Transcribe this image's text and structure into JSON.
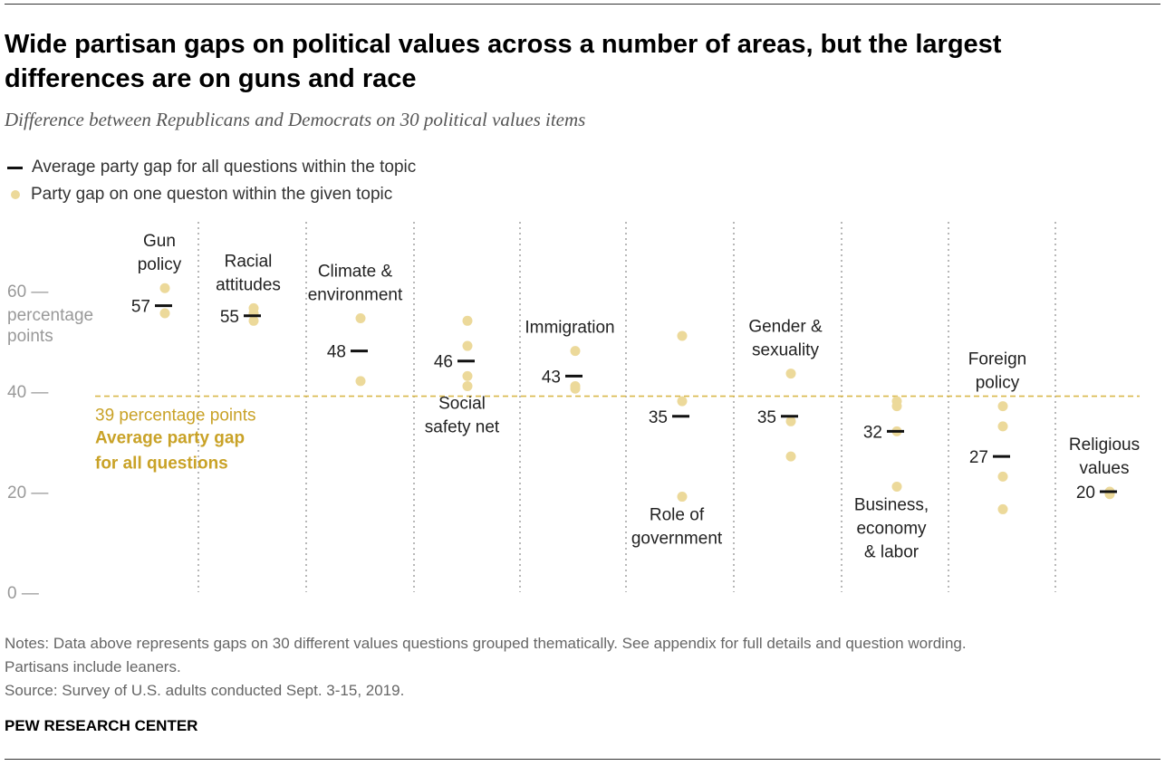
{
  "title": "Wide partisan gaps on political values across a number of areas, but the largest differences are on guns and race",
  "subtitle": "Difference between Republicans and Democrats on 30 political values items",
  "legend": {
    "average": "Average party gap for all questions within the topic",
    "single": "Party gap on one queston within the given topic"
  },
  "colors": {
    "dot": "#ecd99a",
    "reference": "#d9b84a",
    "reference_text": "#c9a227",
    "average_mark": "#111111",
    "divider": "#888888"
  },
  "chart_data": {
    "type": "scatter",
    "title": "Wide partisan gaps on political values across a number of areas, but the largest differences are on guns and race",
    "ylabel": "percentage points",
    "ylim": [
      0,
      70
    ],
    "yticks": [
      {
        "value": 60,
        "label": "60 —"
      },
      {
        "value": 40,
        "label": "40 —"
      },
      {
        "value": 20,
        "label": "20 —"
      },
      {
        "value": 0,
        "label": "0 —"
      }
    ],
    "reference_line": {
      "value": 39,
      "label": "39 percentage points",
      "caption_line1": "Average party gap",
      "caption_line2": "for all questions"
    },
    "categories": [
      {
        "label": [
          "Gun",
          "policy"
        ],
        "label_pos": "above",
        "average": 57,
        "points": [
          60.5,
          55.5
        ]
      },
      {
        "label": [
          "Racial",
          "attitudes"
        ],
        "label_pos": "above",
        "average": 55,
        "points": [
          56.5,
          55.5,
          54
        ]
      },
      {
        "label": [
          "Climate &",
          "environment"
        ],
        "label_pos": "above",
        "average": 48,
        "points": [
          54.5,
          42
        ]
      },
      {
        "label": [
          "Social",
          "safety net"
        ],
        "label_pos": "below",
        "average": 46,
        "points": [
          54,
          49,
          43,
          41
        ]
      },
      {
        "label": [
          "Immigration"
        ],
        "label_pos": "above",
        "average": 43,
        "points": [
          48,
          41,
          40.5
        ]
      },
      {
        "label": [
          "Role of",
          "government"
        ],
        "label_pos": "below",
        "average": 35,
        "points": [
          51,
          38,
          19
        ]
      },
      {
        "label": [
          "Gender &",
          "sexuality"
        ],
        "label_pos": "above",
        "average": 35,
        "points": [
          43.5,
          34,
          27
        ]
      },
      {
        "label": [
          "Business,",
          "economy",
          "& labor"
        ],
        "label_pos": "below",
        "average": 32,
        "points": [
          38,
          37,
          32,
          21
        ]
      },
      {
        "label": [
          "Foreign",
          "policy"
        ],
        "label_pos": "above",
        "average": 27,
        "points": [
          37,
          33,
          23,
          16.5
        ]
      },
      {
        "label": [
          "Religious",
          "values"
        ],
        "label_pos": "above",
        "average": 20,
        "points": [
          20,
          19.5
        ]
      }
    ]
  },
  "notes": {
    "line1": "Notes: Data above represents gaps on 30 different values questions grouped thematically. See appendix for full details and question wording.",
    "line2": "Partisans include leaners.",
    "source": "Source: Survey of U.S. adults conducted Sept. 3-15, 2019."
  },
  "brand": "PEW RESEARCH CENTER"
}
